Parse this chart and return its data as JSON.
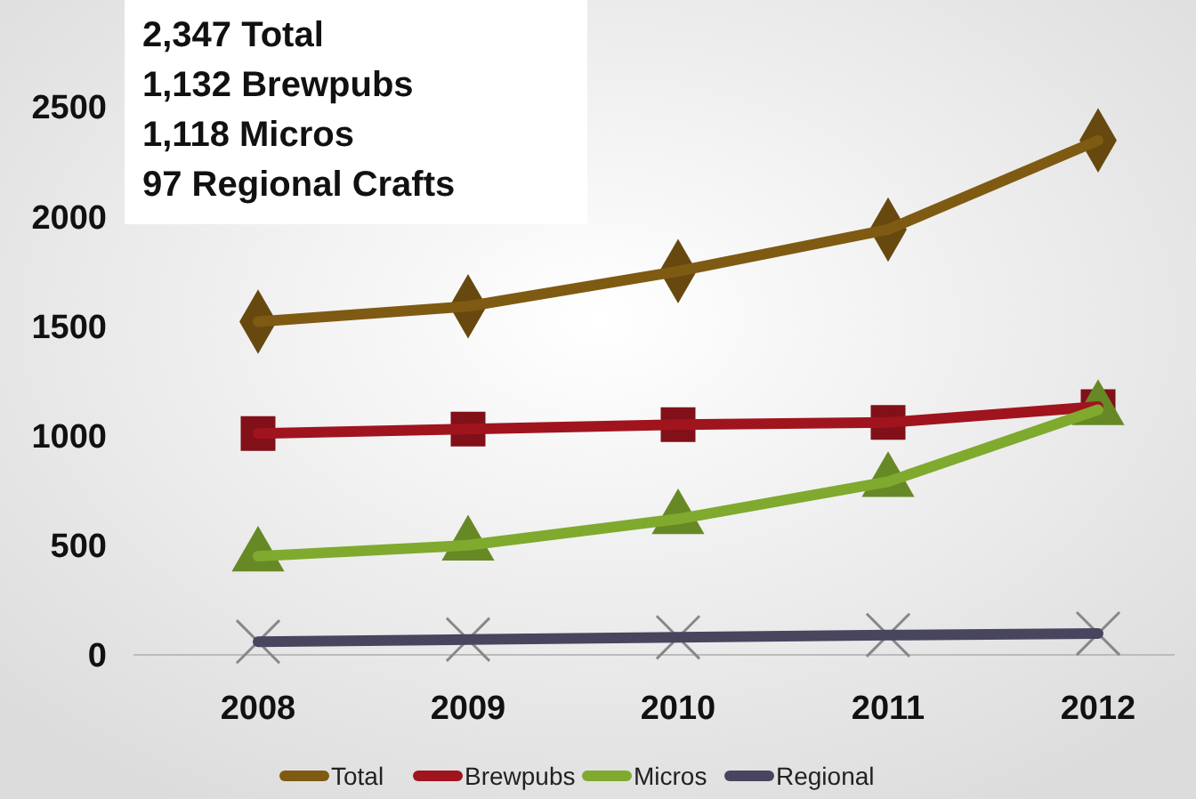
{
  "chart_data": {
    "type": "line",
    "categories": [
      "2008",
      "2009",
      "2010",
      "2011",
      "2012"
    ],
    "series": [
      {
        "name": "Total",
        "color": "#7f5a12",
        "marker": "diamond",
        "values": [
          1520,
          1590,
          1750,
          1940,
          2347
        ]
      },
      {
        "name": "Brewpubs",
        "color": "#a0141e",
        "marker": "square",
        "values": [
          1010,
          1030,
          1050,
          1060,
          1132
        ]
      },
      {
        "name": "Micros",
        "color": "#7faa2e",
        "marker": "triangle",
        "values": [
          450,
          500,
          620,
          790,
          1118
        ]
      },
      {
        "name": "Regional",
        "color": "#48455e",
        "marker": "cross",
        "values": [
          60,
          70,
          80,
          90,
          97
        ]
      }
    ],
    "ylim": [
      0,
      2500
    ],
    "yticks": [
      0,
      500,
      1000,
      1500,
      2000,
      2500
    ],
    "grid": false,
    "legend": "bottom",
    "annotations": [
      "2,347 Total",
      "1,132 Brewpubs",
      "1,118 Micros",
      "97 Regional Crafts"
    ]
  }
}
